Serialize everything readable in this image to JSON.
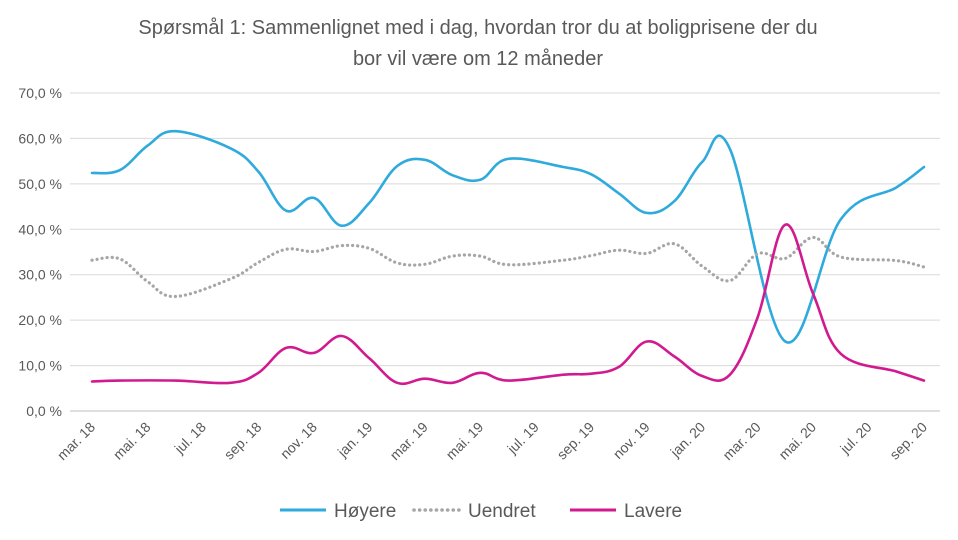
{
  "chart_data": {
    "type": "line",
    "title": [
      "Spørsmål 1: Sammenlignet  med i dag, hvordan tror du at boligprisene  der du",
      "bor vil være om 12 måneder"
    ],
    "xlabel": "",
    "ylabel": "",
    "ylim": [
      0,
      70
    ],
    "yticks": [
      "0,0 %",
      "10,0 %",
      "20,0 %",
      "30,0 %",
      "40,0 %",
      "50,0 %",
      "60,0 %",
      "70,0 %"
    ],
    "grid": true,
    "legend_position": "bottom",
    "x_tick_labels": [
      "mar. 18",
      "mai. 18",
      "jul. 18",
      "sep. 18",
      "nov. 18",
      "jan. 19",
      "mar. 19",
      "mai. 19",
      "jul. 19",
      "sep. 19",
      "nov. 19",
      "jan. 20",
      "mar. 20",
      "mai. 20",
      "jul. 20",
      "sep. 20"
    ],
    "x_months": [
      "2018-03",
      "2018-04",
      "2018-05",
      "2018-06",
      "2018-07",
      "2018-08",
      "2018-09",
      "2018-10",
      "2018-11",
      "2018-12",
      "2019-01",
      "2019-02",
      "2019-03",
      "2019-04",
      "2019-05",
      "2019-06",
      "2019-07",
      "2019-08",
      "2019-09",
      "2019-10",
      "2019-11",
      "2019-12",
      "2020-01",
      "2020-02",
      "2020-03",
      "2020-04",
      "2020-05",
      "2020-06",
      "2020-07",
      "2020-08",
      "2020-09"
    ],
    "series": [
      {
        "name": "Høyere",
        "color": "#2EAADC",
        "style": "solid",
        "points": [
          [
            "2018-03",
            52.4
          ],
          [
            "2018-04",
            53.0
          ],
          [
            "2018-05",
            58.4
          ],
          [
            "2018-06",
            61.6
          ],
          [
            "2018-08",
            57.8
          ],
          [
            "2018-09",
            52.7
          ],
          [
            "2018-10",
            44.1
          ],
          [
            "2018-11",
            46.9
          ],
          [
            "2018-12",
            40.8
          ],
          [
            "2019-01",
            45.8
          ],
          [
            "2019-02",
            53.9
          ],
          [
            "2019-03",
            55.3
          ],
          [
            "2019-04",
            51.9
          ],
          [
            "2019-05",
            50.9
          ],
          [
            "2019-06",
            55.5
          ],
          [
            "2019-08",
            53.7
          ],
          [
            "2019-09",
            52.1
          ],
          [
            "2019-10",
            47.9
          ],
          [
            "2019-11",
            43.6
          ],
          [
            "2019-12",
            46.2
          ],
          [
            "2020-01",
            54.8
          ],
          [
            "2020-02",
            57.7
          ],
          [
            "2020-04",
            15.3
          ],
          [
            "2020-06",
            42.2
          ],
          [
            "2020-08",
            49.2
          ],
          [
            "2020-09",
            53.7
          ]
        ]
      },
      {
        "name": "Uendret",
        "color": "#A6A6A6",
        "style": "dotted",
        "points": [
          [
            "2018-03",
            33.2
          ],
          [
            "2018-04",
            33.5
          ],
          [
            "2018-05",
            28.5
          ],
          [
            "2018-06",
            25.2
          ],
          [
            "2018-08",
            29.1
          ],
          [
            "2018-09",
            32.7
          ],
          [
            "2018-10",
            35.6
          ],
          [
            "2018-11",
            35.1
          ],
          [
            "2018-12",
            36.4
          ],
          [
            "2019-01",
            35.8
          ],
          [
            "2019-02",
            32.6
          ],
          [
            "2019-03",
            32.3
          ],
          [
            "2019-04",
            34.1
          ],
          [
            "2019-05",
            34.1
          ],
          [
            "2019-06",
            32.2
          ],
          [
            "2019-08",
            33.2
          ],
          [
            "2019-09",
            34.2
          ],
          [
            "2019-10",
            35.4
          ],
          [
            "2019-11",
            34.7
          ],
          [
            "2019-12",
            36.8
          ],
          [
            "2020-01",
            31.9
          ],
          [
            "2020-02",
            28.7
          ],
          [
            "2020-03",
            34.6
          ],
          [
            "2020-04",
            33.6
          ],
          [
            "2020-05",
            38.2
          ],
          [
            "2020-06",
            33.9
          ],
          [
            "2020-08",
            33.1
          ],
          [
            "2020-09",
            31.7
          ]
        ]
      },
      {
        "name": "Lavere",
        "color": "#D11A8F",
        "style": "solid",
        "points": [
          [
            "2018-03",
            6.5
          ],
          [
            "2018-04",
            6.7
          ],
          [
            "2018-06",
            6.7
          ],
          [
            "2018-08",
            6.2
          ],
          [
            "2018-09",
            8.4
          ],
          [
            "2018-10",
            13.9
          ],
          [
            "2018-11",
            12.8
          ],
          [
            "2018-12",
            16.5
          ],
          [
            "2019-01",
            11.6
          ],
          [
            "2019-02",
            6.2
          ],
          [
            "2019-03",
            7.1
          ],
          [
            "2019-04",
            6.2
          ],
          [
            "2019-05",
            8.4
          ],
          [
            "2019-06",
            6.7
          ],
          [
            "2019-08",
            8.0
          ],
          [
            "2019-09",
            8.2
          ],
          [
            "2019-10",
            9.7
          ],
          [
            "2019-11",
            15.3
          ],
          [
            "2019-12",
            12.0
          ],
          [
            "2020-01",
            7.7
          ],
          [
            "2020-02",
            8.0
          ],
          [
            "2020-03",
            20.6
          ],
          [
            "2020-04",
            41.0
          ],
          [
            "2020-05",
            25.8
          ],
          [
            "2020-06",
            12.6
          ],
          [
            "2020-08",
            8.7
          ],
          [
            "2020-09",
            6.7
          ]
        ]
      }
    ]
  }
}
